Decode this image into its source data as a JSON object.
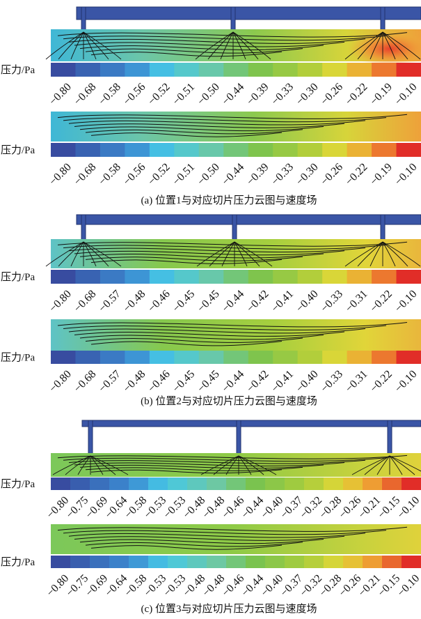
{
  "figure": {
    "panels": [
      {
        "caption": "(a) 位置1与对应切片压力云图与速度场",
        "slices": [
          {
            "colorbar": {
              "label": "压力/Pa",
              "ticks": [
                "−0.80",
                "−0.68",
                "−0.58",
                "−0.56",
                "−0.52",
                "−0.51",
                "−0.50",
                "−0.44",
                "−0.39",
                "−0.33",
                "−0.30",
                "−0.26",
                "−0.22",
                "−0.19",
                "−0.10"
              ]
            }
          },
          {
            "colorbar": {
              "label": "压力/Pa",
              "ticks": [
                "−0.80",
                "−0.68",
                "−0.58",
                "−0.56",
                "−0.52",
                "−0.51",
                "−0.50",
                "−0.44",
                "−0.39",
                "−0.33",
                "−0.30",
                "−0.26",
                "−0.22",
                "−0.19",
                "−0.10"
              ]
            }
          }
        ]
      },
      {
        "caption": "(b) 位置2与对应切片压力云图与速度场",
        "slices": [
          {
            "colorbar": {
              "label": "压力/Pa",
              "ticks": [
                "−0.80",
                "−0.68",
                "−0.57",
                "−0.48",
                "−0.46",
                "−0.45",
                "−0.45",
                "−0.44",
                "−0.42",
                "−0.41",
                "−0.40",
                "−0.33",
                "−0.31",
                "−0.22",
                "−0.10"
              ]
            }
          },
          {
            "colorbar": {
              "label": "压力/Pa",
              "ticks": [
                "−0.80",
                "−0.68",
                "−0.57",
                "−0.48",
                "−0.46",
                "−0.45",
                "−0.45",
                "−0.44",
                "−0.42",
                "−0.41",
                "−0.40",
                "−0.33",
                "−0.31",
                "−0.22",
                "−0.10"
              ]
            }
          }
        ]
      },
      {
        "caption": "(c) 位置3与对应切片压力云图与速度场",
        "slices": [
          {
            "colorbar": {
              "label": "压力/Pa",
              "ticks": [
                "−0.80",
                "−0.75",
                "−0.69",
                "−0.64",
                "−0.58",
                "−0.53",
                "−0.53",
                "−0.48",
                "−0.48",
                "−0.46",
                "−0.44",
                "−0.40",
                "−0.37",
                "−0.32",
                "−0.28",
                "−0.26",
                "−0.21",
                "−0.15",
                "−0.10"
              ]
            }
          },
          {
            "colorbar": {
              "label": "压力/Pa",
              "ticks": [
                "−0.80",
                "−0.75",
                "−0.69",
                "−0.64",
                "−0.58",
                "−0.53",
                "−0.53",
                "−0.48",
                "−0.48",
                "−0.46",
                "−0.44",
                "−0.40",
                "−0.37",
                "−0.32",
                "−0.28",
                "−0.26",
                "−0.21",
                "−0.15",
                "−0.10"
              ]
            }
          }
        ]
      }
    ]
  }
}
